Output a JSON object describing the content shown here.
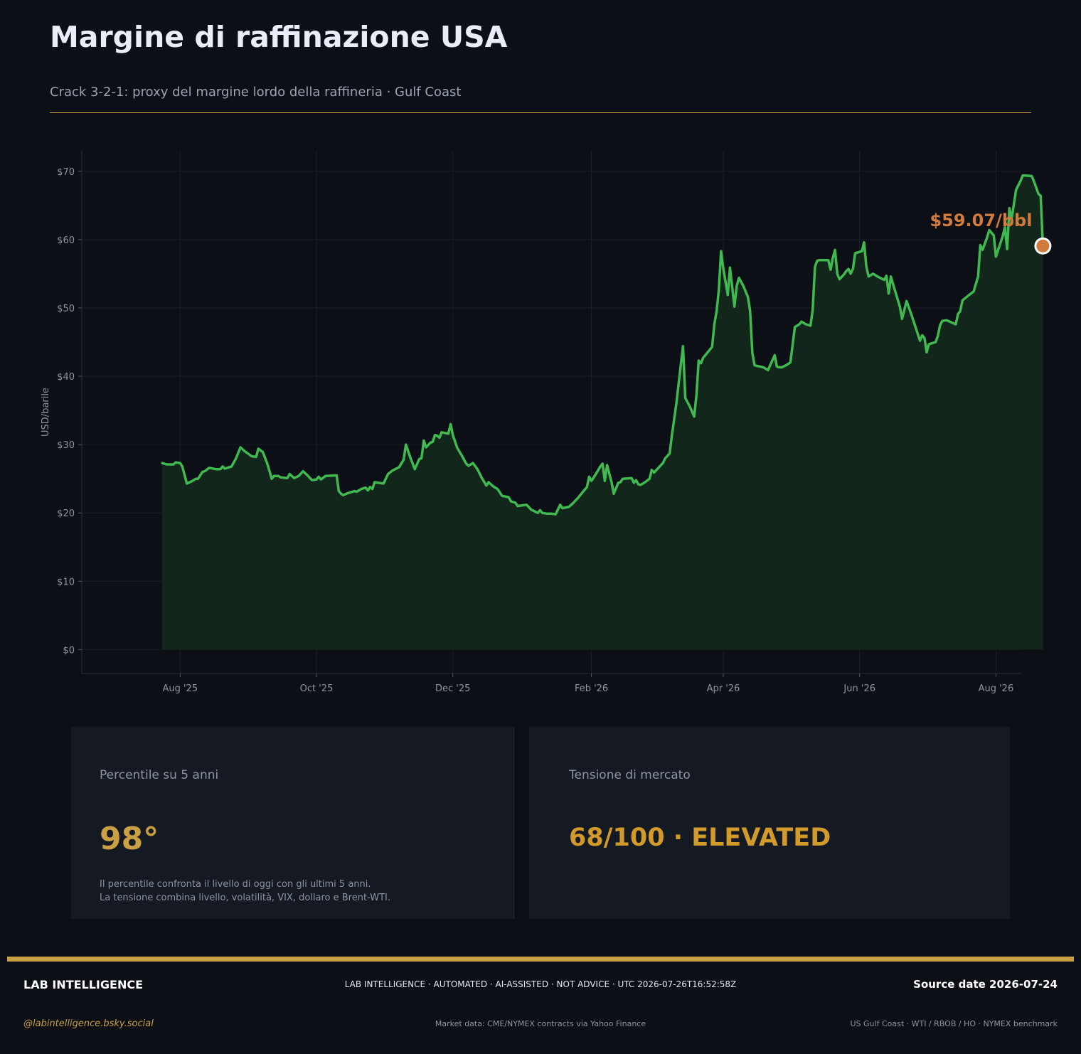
{
  "header": {
    "title": "Margine di raffinazione USA",
    "subtitle": "Crack 3-2-1: proxy del margine lordo della raffineria · Gulf Coast"
  },
  "colors": {
    "line": "#3fb950",
    "fill": "#12261c",
    "marker": "#d07a3d",
    "accent": "#c9a043",
    "grid": "#1b1f27",
    "tick": "#8d95a3"
  },
  "chart_data": {
    "type": "area",
    "title": "",
    "xlabel": "",
    "ylabel": "USD/barile",
    "ylim": [
      -3.5,
      73
    ],
    "xlim": [
      "2025-06-18",
      "2026-08-12"
    ],
    "grid": true,
    "y_ticks": [
      0,
      10,
      20,
      30,
      40,
      50,
      60,
      70
    ],
    "y_tick_labels": [
      "$0",
      "$10",
      "$20",
      "$30",
      "$40",
      "$50",
      "$60",
      "$70"
    ],
    "x_ticks": [
      "2025-08-01",
      "2025-10-01",
      "2025-12-01",
      "2026-02-01",
      "2026-04-01",
      "2026-06-01",
      "2026-08-01"
    ],
    "x_tick_labels": [
      "Aug '25",
      "Oct '25",
      "Dec '25",
      "Feb '26",
      "Apr '26",
      "Jun '26",
      "Aug '26"
    ],
    "last_value_label": "$59.07/bbl",
    "series": [
      {
        "points": [
          [
            "2025-07-24",
            27.3
          ],
          [
            "2025-07-26",
            27.1
          ],
          [
            "2025-07-29",
            27.1
          ],
          [
            "2025-07-30",
            27.4
          ],
          [
            "2025-08-01",
            27.3
          ],
          [
            "2025-08-02",
            26.8
          ],
          [
            "2025-08-04",
            24.3
          ],
          [
            "2025-08-06",
            24.6
          ],
          [
            "2025-08-08",
            25.0
          ],
          [
            "2025-08-09",
            25.0
          ],
          [
            "2025-08-11",
            26.0
          ],
          [
            "2025-08-12",
            26.1
          ],
          [
            "2025-08-14",
            26.6
          ],
          [
            "2025-08-17",
            26.4
          ],
          [
            "2025-08-19",
            26.4
          ],
          [
            "2025-08-20",
            26.8
          ],
          [
            "2025-08-21",
            26.5
          ],
          [
            "2025-08-24",
            26.8
          ],
          [
            "2025-08-26",
            28.0
          ],
          [
            "2025-08-28",
            29.6
          ],
          [
            "2025-08-30",
            29.0
          ],
          [
            "2025-09-02",
            28.3
          ],
          [
            "2025-09-04",
            28.2
          ],
          [
            "2025-09-05",
            29.4
          ],
          [
            "2025-09-07",
            28.9
          ],
          [
            "2025-09-09",
            27.2
          ],
          [
            "2025-09-11",
            25.0
          ],
          [
            "2025-09-12",
            25.4
          ],
          [
            "2025-09-14",
            25.4
          ],
          [
            "2025-09-15",
            25.2
          ],
          [
            "2025-09-18",
            25.1
          ],
          [
            "2025-09-19",
            25.7
          ],
          [
            "2025-09-21",
            25.1
          ],
          [
            "2025-09-23",
            25.4
          ],
          [
            "2025-09-25",
            26.1
          ],
          [
            "2025-09-27",
            25.5
          ],
          [
            "2025-09-29",
            24.8
          ],
          [
            "2025-10-01",
            24.9
          ],
          [
            "2025-10-02",
            25.3
          ],
          [
            "2025-10-03",
            24.9
          ],
          [
            "2025-10-05",
            25.4
          ],
          [
            "2025-10-10",
            25.5
          ],
          [
            "2025-10-11",
            23.2
          ],
          [
            "2025-10-12",
            22.8
          ],
          [
            "2025-10-13",
            22.6
          ],
          [
            "2025-10-15",
            22.9
          ],
          [
            "2025-10-18",
            23.2
          ],
          [
            "2025-10-19",
            23.1
          ],
          [
            "2025-10-21",
            23.5
          ],
          [
            "2025-10-23",
            23.7
          ],
          [
            "2025-10-24",
            23.3
          ],
          [
            "2025-10-25",
            23.8
          ],
          [
            "2025-10-26",
            23.5
          ],
          [
            "2025-10-27",
            24.5
          ],
          [
            "2025-10-31",
            24.3
          ],
          [
            "2025-11-02",
            25.7
          ],
          [
            "2025-11-04",
            26.2
          ],
          [
            "2025-11-07",
            26.7
          ],
          [
            "2025-11-09",
            27.8
          ],
          [
            "2025-11-10",
            30.0
          ],
          [
            "2025-11-12",
            28.1
          ],
          [
            "2025-11-14",
            26.4
          ],
          [
            "2025-11-16",
            27.9
          ],
          [
            "2025-11-17",
            28.0
          ],
          [
            "2025-11-18",
            30.6
          ],
          [
            "2025-11-19",
            29.6
          ],
          [
            "2025-11-21",
            30.3
          ],
          [
            "2025-11-22",
            30.4
          ],
          [
            "2025-11-23",
            31.4
          ],
          [
            "2025-11-24",
            31.3
          ],
          [
            "2025-11-25",
            31.0
          ],
          [
            "2025-11-26",
            31.8
          ],
          [
            "2025-11-29",
            31.6
          ],
          [
            "2025-11-30",
            33.0
          ],
          [
            "2025-12-01",
            31.4
          ],
          [
            "2025-12-03",
            29.5
          ],
          [
            "2025-12-05",
            28.4
          ],
          [
            "2025-12-07",
            27.2
          ],
          [
            "2025-12-08",
            26.9
          ],
          [
            "2025-12-10",
            27.3
          ],
          [
            "2025-12-12",
            26.4
          ],
          [
            "2025-12-14",
            25.1
          ],
          [
            "2025-12-16",
            24.0
          ],
          [
            "2025-12-17",
            24.5
          ],
          [
            "2025-12-19",
            23.9
          ],
          [
            "2025-12-21",
            23.5
          ],
          [
            "2025-12-23",
            22.5
          ],
          [
            "2025-12-26",
            22.3
          ],
          [
            "2025-12-27",
            21.7
          ],
          [
            "2025-12-29",
            21.5
          ],
          [
            "2025-12-30",
            21.0
          ],
          [
            "2026-01-01",
            21.1
          ],
          [
            "2026-01-03",
            21.2
          ],
          [
            "2026-01-05",
            20.5
          ],
          [
            "2026-01-08",
            20.0
          ],
          [
            "2026-01-09",
            20.4
          ],
          [
            "2026-01-10",
            20.0
          ],
          [
            "2026-01-12",
            19.9
          ],
          [
            "2026-01-14",
            19.9
          ],
          [
            "2026-01-16",
            19.8
          ],
          [
            "2026-01-18",
            21.2
          ],
          [
            "2026-01-19",
            20.7
          ],
          [
            "2026-01-22",
            20.9
          ],
          [
            "2026-01-23",
            21.2
          ],
          [
            "2026-01-24",
            21.5
          ],
          [
            "2026-01-26",
            22.2
          ],
          [
            "2026-01-28",
            23.0
          ],
          [
            "2026-01-30",
            23.8
          ],
          [
            "2026-01-31",
            25.3
          ],
          [
            "2026-02-01",
            24.7
          ],
          [
            "2026-02-03",
            25.7
          ],
          [
            "2026-02-05",
            26.8
          ],
          [
            "2026-02-06",
            27.2
          ],
          [
            "2026-02-07",
            24.7
          ],
          [
            "2026-02-08",
            27.0
          ],
          [
            "2026-02-10",
            24.5
          ],
          [
            "2026-02-11",
            22.8
          ],
          [
            "2026-02-13",
            24.4
          ],
          [
            "2026-02-14",
            24.5
          ],
          [
            "2026-02-15",
            25.0
          ],
          [
            "2026-02-19",
            25.1
          ],
          [
            "2026-02-20",
            24.4
          ],
          [
            "2026-02-21",
            24.8
          ],
          [
            "2026-02-22",
            24.2
          ],
          [
            "2026-02-23",
            24.1
          ],
          [
            "2026-02-25",
            24.5
          ],
          [
            "2026-02-27",
            25.0
          ],
          [
            "2026-02-28",
            26.3
          ],
          [
            "2026-03-01",
            25.9
          ],
          [
            "2026-03-05",
            27.3
          ],
          [
            "2026-03-06",
            28.0
          ],
          [
            "2026-03-08",
            28.7
          ],
          [
            "2026-03-09",
            31.3
          ],
          [
            "2026-03-11",
            36.0
          ],
          [
            "2026-03-13",
            41.7
          ],
          [
            "2026-03-14",
            44.4
          ],
          [
            "2026-03-15",
            36.8
          ],
          [
            "2026-03-17",
            35.6
          ],
          [
            "2026-03-19",
            34.1
          ],
          [
            "2026-03-20",
            37.3
          ],
          [
            "2026-03-21",
            42.3
          ],
          [
            "2026-03-22",
            41.9
          ],
          [
            "2026-03-23",
            42.7
          ],
          [
            "2026-03-27",
            44.3
          ],
          [
            "2026-03-28",
            47.6
          ],
          [
            "2026-03-29",
            49.5
          ],
          [
            "2026-03-30",
            52.6
          ],
          [
            "2026-03-31",
            58.3
          ],
          [
            "2026-04-01",
            55.8
          ],
          [
            "2026-04-03",
            51.9
          ],
          [
            "2026-04-04",
            55.9
          ],
          [
            "2026-04-06",
            50.2
          ],
          [
            "2026-04-07",
            53.2
          ],
          [
            "2026-04-08",
            54.4
          ],
          [
            "2026-04-10",
            53.2
          ],
          [
            "2026-04-12",
            51.6
          ],
          [
            "2026-04-13",
            49.6
          ],
          [
            "2026-04-14",
            43.4
          ],
          [
            "2026-04-15",
            41.6
          ],
          [
            "2026-04-19",
            41.3
          ],
          [
            "2026-04-21",
            40.9
          ],
          [
            "2026-04-24",
            43.1
          ],
          [
            "2026-04-25",
            41.4
          ],
          [
            "2026-04-27",
            41.3
          ],
          [
            "2026-04-29",
            41.6
          ],
          [
            "2026-05-01",
            42.0
          ],
          [
            "2026-05-02",
            44.5
          ],
          [
            "2026-05-03",
            47.2
          ],
          [
            "2026-05-05",
            47.6
          ],
          [
            "2026-05-06",
            48.0
          ],
          [
            "2026-05-08",
            47.6
          ],
          [
            "2026-05-10",
            47.4
          ],
          [
            "2026-05-11",
            49.7
          ],
          [
            "2026-05-12",
            56.0
          ],
          [
            "2026-05-13",
            56.9
          ],
          [
            "2026-05-14",
            57.0
          ],
          [
            "2026-05-17",
            57.0
          ],
          [
            "2026-05-18",
            57.0
          ],
          [
            "2026-05-19",
            55.6
          ],
          [
            "2026-05-20",
            57.3
          ],
          [
            "2026-05-21",
            58.5
          ],
          [
            "2026-05-22",
            55.0
          ],
          [
            "2026-05-23",
            54.2
          ],
          [
            "2026-05-25",
            54.9
          ],
          [
            "2026-05-26",
            55.4
          ],
          [
            "2026-05-27",
            55.7
          ],
          [
            "2026-05-28",
            55.0
          ],
          [
            "2026-05-29",
            55.7
          ],
          [
            "2026-05-30",
            58.0
          ],
          [
            "2026-06-02",
            58.3
          ],
          [
            "2026-06-03",
            59.6
          ],
          [
            "2026-06-04",
            56.1
          ],
          [
            "2026-06-05",
            54.6
          ],
          [
            "2026-06-07",
            55.0
          ],
          [
            "2026-06-09",
            54.6
          ],
          [
            "2026-06-12",
            54.1
          ],
          [
            "2026-06-13",
            54.7
          ],
          [
            "2026-06-14",
            52.1
          ],
          [
            "2026-06-15",
            54.6
          ],
          [
            "2026-06-16",
            53.4
          ],
          [
            "2026-06-19",
            50.2
          ],
          [
            "2026-06-20",
            48.4
          ],
          [
            "2026-06-22",
            51.0
          ],
          [
            "2026-06-24",
            49.2
          ],
          [
            "2026-06-26",
            47.2
          ],
          [
            "2026-06-28",
            45.2
          ],
          [
            "2026-06-29",
            46.0
          ],
          [
            "2026-06-30",
            45.6
          ],
          [
            "2026-07-01",
            43.5
          ],
          [
            "2026-07-02",
            44.7
          ],
          [
            "2026-07-05",
            45.0
          ],
          [
            "2026-07-06",
            45.9
          ],
          [
            "2026-07-07",
            47.5
          ],
          [
            "2026-07-08",
            48.1
          ],
          [
            "2026-07-10",
            48.2
          ],
          [
            "2026-07-14",
            47.6
          ],
          [
            "2026-07-15",
            49.1
          ],
          [
            "2026-07-16",
            49.5
          ],
          [
            "2026-07-17",
            51.1
          ],
          [
            "2026-07-20",
            51.9
          ],
          [
            "2026-07-22",
            52.4
          ],
          [
            "2026-07-24",
            54.6
          ],
          [
            "2026-07-25",
            59.2
          ],
          [
            "2026-07-26",
            58.5
          ],
          [
            "2026-07-28",
            60.3
          ],
          [
            "2026-07-29",
            61.4
          ],
          [
            "2026-07-31",
            60.6
          ],
          [
            "2026-08-01",
            57.5
          ],
          [
            "2026-08-04",
            60.5
          ],
          [
            "2026-08-05",
            61.8
          ],
          [
            "2026-08-06",
            58.6
          ],
          [
            "2026-08-07",
            64.6
          ],
          [
            "2026-08-08",
            63.0
          ],
          [
            "2026-08-10",
            67.3
          ],
          [
            "2026-08-12",
            68.6
          ],
          [
            "2026-08-13",
            69.4
          ],
          [
            "2026-08-17",
            69.3
          ],
          [
            "2026-08-18",
            68.5
          ],
          [
            "2026-08-20",
            66.7
          ],
          [
            "2026-08-21",
            66.4
          ],
          [
            "2026-08-22",
            59.07
          ]
        ]
      }
    ]
  },
  "cards": {
    "percentile": {
      "label": "Percentile su 5 anni",
      "value": "98°",
      "note_line1": "Il percentile confronta il livello di oggi con gli ultimi 5 anni.",
      "note_line2": "La tensione combina livello, volatilità, VIX, dollaro e Brent-WTI."
    },
    "tension": {
      "label": "Tensione di mercato",
      "value": "68/100 · ELEVATED"
    }
  },
  "footer": {
    "brand": "LAB INTELLIGENCE",
    "disclaimer": "LAB INTELLIGENCE · AUTOMATED · AI-ASSISTED · NOT ADVICE · UTC 2026-07-26T16:52:58Z",
    "source_date": "Source date 2026-07-24",
    "handle": "@labintelligence.bsky.social",
    "market_data": "Market data: CME/NYMEX contracts via Yahoo Finance",
    "benchmark": "US Gulf Coast · WTI / RBOB / HO · NYMEX benchmark"
  }
}
